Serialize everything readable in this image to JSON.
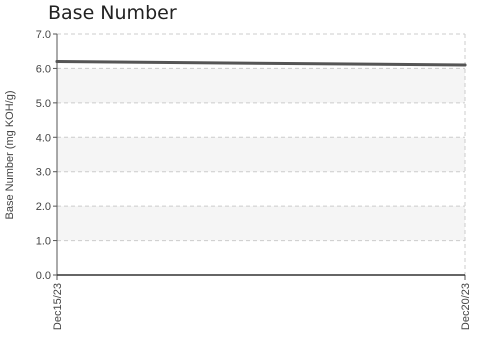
{
  "chart_data": {
    "type": "line",
    "title": "Base Number",
    "ylabel": "Base Number (mg KOH/g)",
    "xlabel": "",
    "ylim": [
      0,
      7
    ],
    "yticks": [
      "0.0",
      "1.0",
      "2.0",
      "3.0",
      "4.0",
      "5.0",
      "6.0",
      "7.0"
    ],
    "categories": [
      "Dec15/23",
      "Dec20/23"
    ],
    "grid": true,
    "legend": "none",
    "series": [
      {
        "values": [
          6.2,
          6.1
        ],
        "color": "#555555"
      }
    ],
    "band_color": "#f5f5f5",
    "grid_color": "#cccccc"
  }
}
